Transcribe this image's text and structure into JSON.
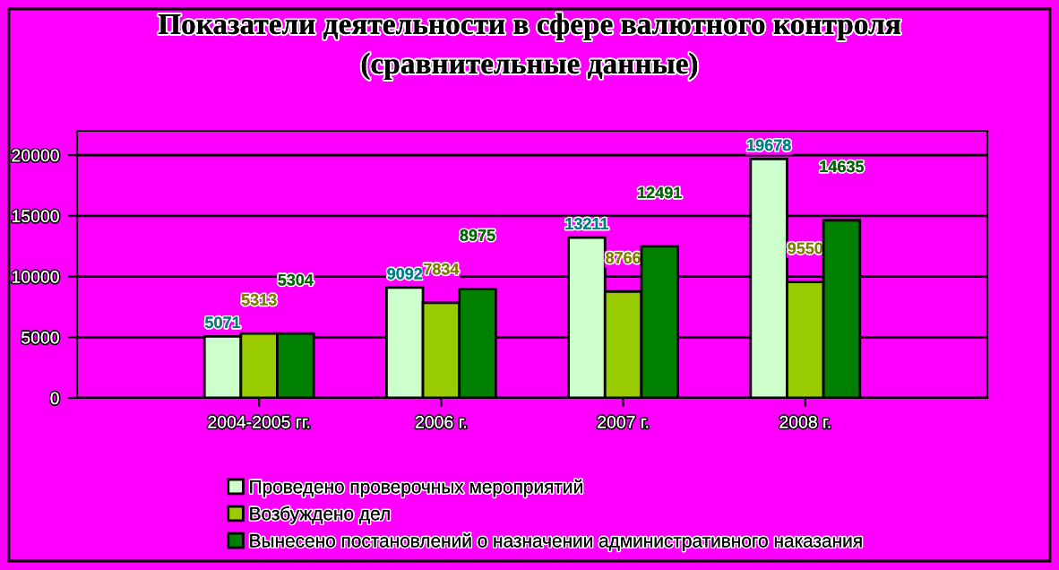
{
  "chart_data": {
    "type": "bar",
    "title": "Показатели деятельности в сфере валютного контроля\n(сравнительные данные)",
    "categories": [
      "2004-2005 гг.",
      "2006 г.",
      "2007 г.",
      "2008 г."
    ],
    "series": [
      {
        "name": "Проведено проверочных мероприятий",
        "color": "#ccffcc",
        "values": [
          5071,
          9092,
          13211,
          19678
        ]
      },
      {
        "name": "Возбуждено дел",
        "color": "#99cc00",
        "values": [
          5313,
          7834,
          8766,
          9550
        ]
      },
      {
        "name": "Вынесено постановлений о назначении административного наказания",
        "color": "#008000",
        "values": [
          5304,
          8975,
          12491,
          14635
        ]
      }
    ],
    "ylim": [
      0,
      22000
    ],
    "yticks": [
      0,
      5000,
      10000,
      15000,
      20000
    ],
    "grid": "y",
    "legend": "bottom",
    "data_labels": true
  }
}
